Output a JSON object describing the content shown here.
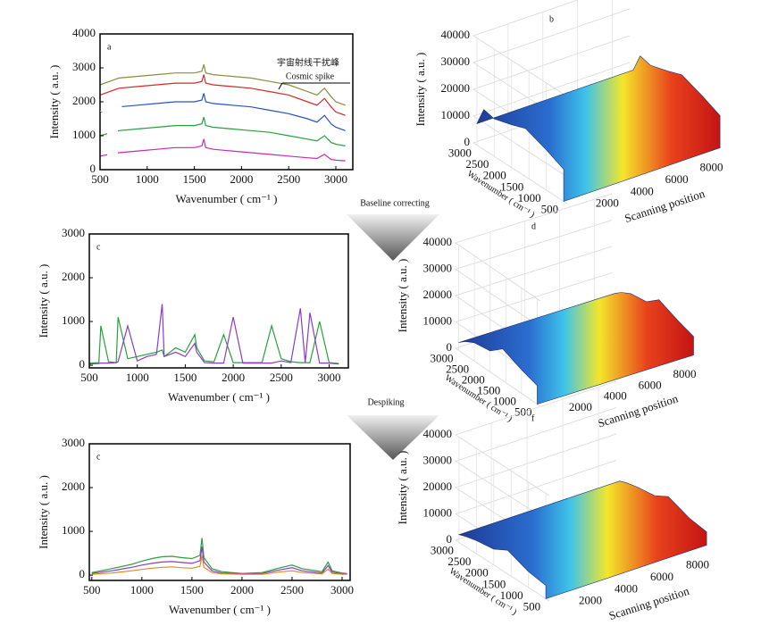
{
  "chart_data": [
    {
      "type": "line",
      "label": "a",
      "ylabel": "Intensity ( a.u. )",
      "xlabel": "Wavenumber ( cm⁻¹ )",
      "annotations": [
        "宇宙射线干扰峰",
        "Cosmic spike"
      ],
      "xlim": [
        500,
        3180
      ],
      "ylim": [
        0,
        4000
      ],
      "xticks": [
        500,
        1000,
        1500,
        2000,
        2500,
        3000
      ],
      "yticks": [
        0,
        1000,
        2000,
        3000,
        4000
      ],
      "x": [
        500,
        700,
        900,
        1100,
        1300,
        1500,
        1580,
        1600,
        1620,
        1700,
        1900,
        2100,
        2300,
        2500,
        2700,
        2800,
        2880,
        2950,
        3000,
        3100
      ],
      "series": [
        {
          "color": "#8c8c3c",
          "values": [
            2500,
            2700,
            2750,
            2800,
            2850,
            2850,
            2900,
            3100,
            2850,
            2800,
            2750,
            2700,
            2600,
            2500,
            2300,
            2200,
            2400,
            2150,
            2000,
            1900
          ]
        },
        {
          "color": "#d62828",
          "values": [
            2200,
            2400,
            2450,
            2500,
            2550,
            2550,
            2600,
            2800,
            2550,
            2500,
            2450,
            2400,
            2300,
            2200,
            2000,
            1900,
            2100,
            1850,
            1700,
            1600
          ]
        },
        {
          "color": "#2850c8",
          "values": [
            1700,
            1850,
            1900,
            1950,
            2000,
            2000,
            2050,
            2250,
            2000,
            1950,
            1900,
            1850,
            1750,
            1650,
            1500,
            1400,
            1600,
            1350,
            1250,
            1150
          ]
        },
        {
          "color": "#28a03c",
          "values": [
            1000,
            1150,
            1200,
            1250,
            1300,
            1300,
            1350,
            1550,
            1300,
            1250,
            1200,
            1150,
            1100,
            1000,
            900,
            850,
            1000,
            800,
            750,
            700
          ]
        },
        {
          "color": "#c828b4",
          "values": [
            400,
            500,
            550,
            600,
            650,
            650,
            700,
            900,
            650,
            600,
            550,
            500,
            450,
            400,
            350,
            330,
            450,
            300,
            280,
            260
          ]
        }
      ]
    },
    {
      "type": "surface3d",
      "label": "b",
      "zlabel": "Intensity ( a.u. )",
      "wlabel": "Wavenumber ( cm⁻¹ )",
      "slabel": "Scanning position",
      "zlim": [
        0,
        40000
      ],
      "zticks": [
        0,
        10000,
        20000,
        30000,
        40000
      ],
      "wlim": [
        400,
        3100
      ],
      "wticks": [
        500,
        1000,
        1500,
        2000,
        2500,
        3000
      ],
      "slim": [
        0,
        9000
      ],
      "sticks": [
        2000,
        4000,
        6000,
        8000
      ],
      "x": [
        3000,
        2800,
        2500,
        2000,
        1600,
        1000,
        500
      ],
      "values": [
        8000,
        15000,
        14000,
        16000,
        18000,
        15000,
        12000
      ]
    },
    {
      "type": "line",
      "label": "c",
      "ylabel": "Intensity ( a.u. )",
      "xlabel": "Wavenumber ( cm⁻¹ )",
      "xlim": [
        500,
        3200
      ],
      "ylim": [
        -60,
        3000
      ],
      "xticks": [
        500,
        1000,
        1500,
        2000,
        2500,
        3000
      ],
      "yticks": [
        0,
        1000,
        2000,
        3000
      ],
      "x": [
        500,
        600,
        620,
        700,
        780,
        800,
        900,
        1000,
        1100,
        1200,
        1260,
        1280,
        1400,
        1500,
        1600,
        1620,
        1700,
        1800,
        1900,
        2000,
        2100,
        2200,
        2300,
        2400,
        2500,
        2600,
        2700,
        2750,
        2800,
        2900,
        3000,
        3100
      ],
      "series": [
        {
          "color": "#28a03c",
          "values": [
            50,
            60,
            900,
            80,
            60,
            1100,
            150,
            200,
            250,
            300,
            350,
            200,
            400,
            300,
            700,
            400,
            100,
            80,
            700,
            60,
            60,
            60,
            60,
            900,
            150,
            80,
            60,
            60,
            60,
            1000,
            60,
            40
          ]
        },
        {
          "color": "#8a3cc8",
          "values": [
            30,
            40,
            50,
            50,
            60,
            80,
            900,
            100,
            200,
            250,
            1400,
            200,
            300,
            200,
            500,
            300,
            60,
            50,
            50,
            1100,
            50,
            50,
            50,
            50,
            100,
            60,
            1300,
            60,
            1200,
            50,
            50,
            30
          ]
        }
      ]
    },
    {
      "type": "surface3d",
      "label": "d",
      "zlabel": "Intensity ( a.u. )",
      "wlabel": "Wavenumber ( cm⁻¹ )",
      "slabel": "Scanning position",
      "zlim": [
        0,
        40000
      ],
      "zticks": [
        0,
        10000,
        20000,
        30000,
        40000
      ],
      "wlim": [
        400,
        3100
      ],
      "wticks": [
        500,
        1000,
        1500,
        2000,
        2500,
        3000
      ],
      "slim": [
        0,
        9000
      ],
      "sticks": [
        2000,
        4000,
        6000,
        8000
      ],
      "x": [
        3000,
        2800,
        2500,
        2000,
        1600,
        1000,
        500
      ],
      "values": [
        3000,
        5000,
        7000,
        8000,
        12000,
        9000,
        7000
      ]
    },
    {
      "type": "line",
      "label": "c",
      "ylabel": "Intensity ( a.u. )",
      "xlabel": "Wavenumber ( cm⁻¹ )",
      "xlim": [
        475,
        3080
      ],
      "ylim": [
        -120,
        3000
      ],
      "xticks": [
        500,
        1000,
        1500,
        2000,
        2500,
        3000
      ],
      "yticks": [
        0,
        1000,
        2000,
        3000
      ],
      "x": [
        500,
        700,
        900,
        1000,
        1100,
        1200,
        1300,
        1400,
        1500,
        1580,
        1600,
        1620,
        1700,
        1800,
        2000,
        2200,
        2400,
        2500,
        2600,
        2800,
        2860,
        2900,
        3000,
        3050
      ],
      "series": [
        {
          "color": "#28a03c",
          "values": [
            60,
            150,
            250,
            320,
            380,
            420,
            430,
            400,
            380,
            450,
            850,
            400,
            150,
            80,
            40,
            60,
            180,
            230,
            150,
            80,
            300,
            100,
            50,
            40
          ]
        },
        {
          "color": "#8a3cc8",
          "values": [
            40,
            100,
            180,
            230,
            270,
            300,
            310,
            290,
            270,
            330,
            650,
            300,
            100,
            50,
            30,
            40,
            130,
            170,
            100,
            50,
            220,
            70,
            30,
            30
          ]
        },
        {
          "color": "#e08a1c",
          "values": [
            20,
            50,
            100,
            130,
            160,
            180,
            190,
            170,
            160,
            200,
            450,
            180,
            60,
            30,
            20,
            20,
            80,
            100,
            60,
            30,
            140,
            40,
            20,
            20
          ]
        }
      ]
    },
    {
      "type": "surface3d",
      "label": "f",
      "zlabel": "Intensity ( a.u. )",
      "wlabel": "Wavenumber ( cm⁻¹ )",
      "slabel": "Scanning position",
      "zlim": [
        0,
        40000
      ],
      "zticks": [
        0,
        10000,
        20000,
        30000,
        40000
      ],
      "wlim": [
        400,
        3100
      ],
      "wticks": [
        500,
        1000,
        1500,
        2000,
        2500,
        3000
      ],
      "slim": [
        0,
        9000
      ],
      "sticks": [
        2000,
        4000,
        6000,
        8000
      ],
      "x": [
        3000,
        2800,
        2500,
        2000,
        1600,
        1000,
        500
      ],
      "values": [
        3000,
        4000,
        5000,
        6000,
        9000,
        6000,
        5000
      ]
    }
  ],
  "steps": [
    "Baseline correcting",
    "Despiking"
  ]
}
